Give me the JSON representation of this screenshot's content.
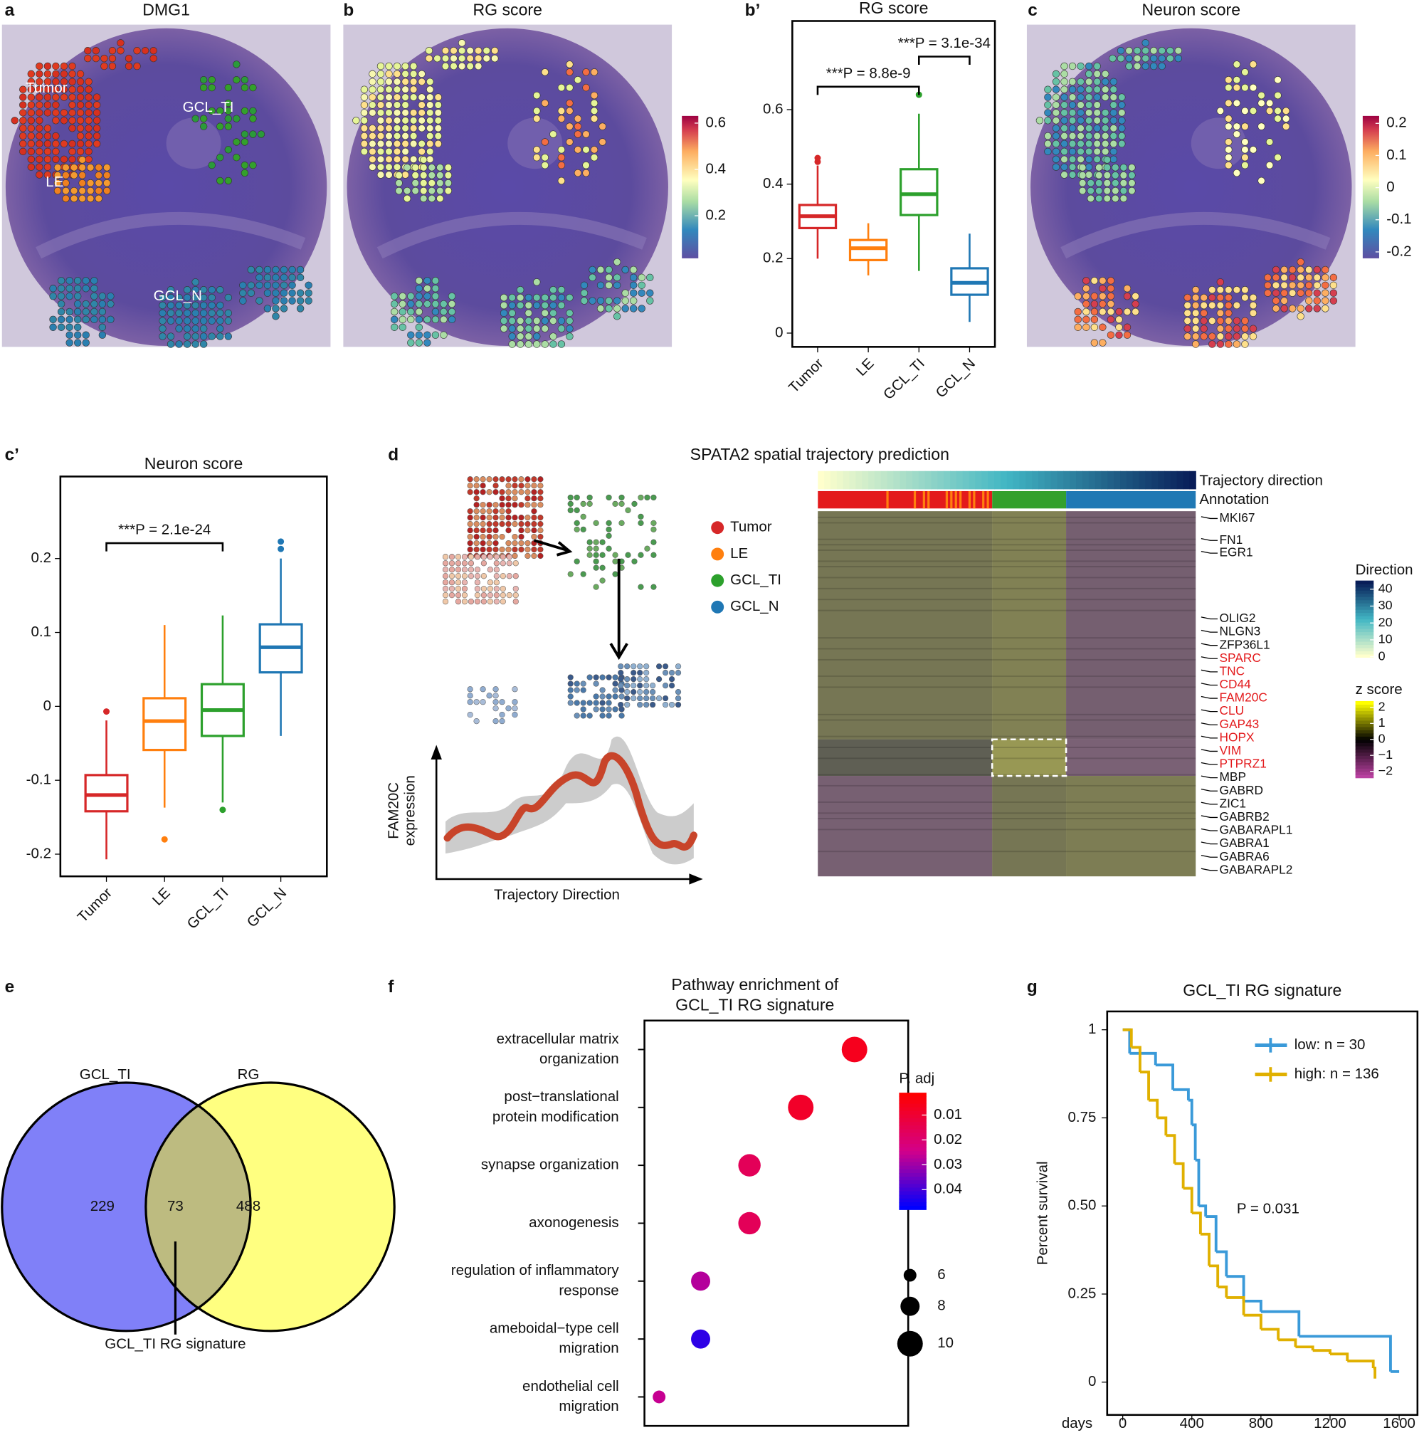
{
  "panel_labels": [
    "a",
    "b",
    "b’",
    "c",
    "c’",
    "d",
    "e",
    "f",
    "g"
  ],
  "spatial_maps": [
    {
      "title": "DMG1",
      "labels": [
        "Tumor",
        "LE",
        "GCL_TI",
        "GCL_N"
      ]
    },
    {
      "title": "RG score",
      "colorbar": {
        "lim": [
          0.016,
          0.631
        ],
        "ticks": [
          0.2,
          0.4,
          0.6
        ]
      }
    },
    {
      "title": "Neuron score",
      "colorbar": {
        "lim": [
          -0.22,
          0.223
        ],
        "ticks": [
          -0.2,
          -0.1,
          0,
          0.1,
          0.2
        ]
      }
    }
  ],
  "chart_data": [
    {
      "type": "box",
      "title": "RG score",
      "categories": [
        "Tumor",
        "LE",
        "GCL_TI",
        "GCL_N"
      ],
      "colors": [
        "#d62728",
        "#ff7f0e",
        "#2ca02c",
        "#1f77b4"
      ],
      "boxes": [
        {
          "min": 0.2,
          "q1": 0.282,
          "median": 0.314,
          "q3": 0.344,
          "max": 0.45,
          "outliers": [
            0.46,
            0.47
          ]
        },
        {
          "min": 0.155,
          "q1": 0.196,
          "median": 0.228,
          "q3": 0.25,
          "max": 0.295,
          "outliers": []
        },
        {
          "min": 0.167,
          "q1": 0.317,
          "median": 0.373,
          "q3": 0.44,
          "max": 0.589,
          "outliers": [
            0.64
          ]
        },
        {
          "min": 0.03,
          "q1": 0.103,
          "median": 0.135,
          "q3": 0.174,
          "max": 0.267,
          "outliers": []
        }
      ],
      "ylim": [
        -0.037,
        0.838
      ],
      "yticks": [
        0,
        0.2,
        0.4,
        0.6
      ],
      "annotations": [
        "***P = 8.8e-9",
        "***P = 3.1e-34"
      ]
    },
    {
      "type": "box",
      "title": "Neuron score",
      "categories": [
        "Tumor",
        "LE",
        "GCL_TI",
        "GCL_N"
      ],
      "colors": [
        "#d62728",
        "#ff7f0e",
        "#2ca02c",
        "#1f77b4"
      ],
      "boxes": [
        {
          "min": -0.207,
          "q1": -0.142,
          "median": -0.12,
          "q3": -0.093,
          "max": -0.019,
          "outliers": [
            -0.007
          ]
        },
        {
          "min": -0.137,
          "q1": -0.059,
          "median": -0.02,
          "q3": 0.011,
          "max": 0.11,
          "outliers": [
            -0.18
          ]
        },
        {
          "min": -0.13,
          "q1": -0.04,
          "median": -0.005,
          "q3": 0.03,
          "max": 0.123,
          "outliers": [
            -0.14
          ]
        },
        {
          "min": -0.04,
          "q1": 0.046,
          "median": 0.08,
          "q3": 0.111,
          "max": 0.2,
          "outliers": [
            0.213,
            0.223
          ]
        }
      ],
      "ylim": [
        -0.23,
        0.311
      ],
      "yticks": [
        -0.2,
        -0.1,
        0,
        0.1,
        0.2
      ],
      "annotations": [
        "***P = 2.1e-24"
      ]
    },
    {
      "type": "dot",
      "title": [
        "Pathway enrichment of",
        "GCL_TI RG signature"
      ],
      "categories": [
        [
          "extracellular matrix",
          "organization"
        ],
        [
          "post−translational",
          "protein modification"
        ],
        [
          "synapse organization"
        ],
        [
          "axonogenesis"
        ],
        [
          "regulation of inflammatory",
          "response"
        ],
        [
          "ameboidal−type cell",
          "migration"
        ],
        [
          "endothelial cell",
          "migration"
        ]
      ],
      "x": [
        0.14,
        0.118,
        0.097,
        0.097,
        0.077,
        0.077,
        0.06
      ],
      "sizes": [
        10,
        10,
        9,
        9,
        8,
        8,
        6
      ],
      "p_adj": [
        0.006,
        0.008,
        0.016,
        0.016,
        0.028,
        0.043,
        0.026
      ],
      "xlim": [
        0.054,
        0.162
      ],
      "color_legend": {
        "title": "P. adj",
        "lim": [
          0.001,
          0.048
        ],
        "ticks": [
          0.01,
          0.02,
          0.03,
          0.04
        ],
        "colors": [
          "#ff0000",
          "#d3008a",
          "#0000ff"
        ]
      },
      "size_legend": [
        6,
        8,
        10
      ]
    },
    {
      "type": "step",
      "title": "GCL_TI RG signature",
      "ylabel": "Percent survival",
      "xlabel": "days",
      "series": [
        {
          "name": "low: n = 30",
          "color": "#3a9ad9",
          "x": [
            0,
            40,
            190,
            290,
            380,
            400,
            420,
            440,
            480,
            540,
            600,
            700,
            800,
            1020,
            1550,
            1600
          ],
          "values": [
            1,
            0.933,
            0.9,
            0.83,
            0.8,
            0.73,
            0.63,
            0.5,
            0.47,
            0.37,
            0.3,
            0.23,
            0.2,
            0.13,
            0.03,
            0.03
          ]
        },
        {
          "name": "high: n = 136",
          "color": "#e0b000",
          "x": [
            0,
            50,
            100,
            150,
            200,
            250,
            300,
            350,
            400,
            450,
            500,
            550,
            600,
            700,
            800,
            900,
            1000,
            1100,
            1200,
            1300,
            1450,
            1460
          ],
          "values": [
            1,
            0.95,
            0.88,
            0.8,
            0.75,
            0.7,
            0.62,
            0.55,
            0.48,
            0.42,
            0.33,
            0.27,
            0.24,
            0.19,
            0.15,
            0.12,
            0.1,
            0.09,
            0.08,
            0.06,
            0.04,
            0.01
          ]
        }
      ],
      "xlim": [
        -90,
        1706
      ],
      "ylim": [
        -0.093,
        1.052
      ],
      "xticks": [
        0,
        400,
        800,
        1200,
        1600
      ],
      "yticks": [
        0,
        0.25,
        {
          "value": 0.5,
          "label": "0.50"
        },
        0.75,
        1
      ],
      "annotation": "P = 0.031"
    }
  ],
  "trajectory": {
    "title": "SPATA2 spatial trajectory prediction",
    "legend": [
      {
        "name": "Tumor",
        "color": "#d62728"
      },
      {
        "name": "LE",
        "color": "#ff7f0e"
      },
      {
        "name": "GCL_TI",
        "color": "#2ca02c"
      },
      {
        "name": "GCL_N",
        "color": "#1f77b4"
      }
    ],
    "ylabel": [
      "FAM20C",
      "expression"
    ],
    "xlabel": "Trajectory Direction",
    "heatmap_rows": [
      "Trajectory direction",
      "Annotation"
    ],
    "highlight_color": "#e31a1c",
    "genes": [
      {
        "name": "MKI67",
        "highlight": false
      },
      {
        "name": "FN1",
        "highlight": false
      },
      {
        "name": "EGR1",
        "highlight": false
      },
      {
        "name": "OLIG2",
        "highlight": false
      },
      {
        "name": "NLGN3",
        "highlight": false
      },
      {
        "name": "ZFP36L1",
        "highlight": false
      },
      {
        "name": "SPARC",
        "highlight": true
      },
      {
        "name": "TNC",
        "highlight": true
      },
      {
        "name": "CD44",
        "highlight": true
      },
      {
        "name": "FAM20C",
        "highlight": true
      },
      {
        "name": "CLU",
        "highlight": true
      },
      {
        "name": "GAP43",
        "highlight": true
      },
      {
        "name": "HOPX",
        "highlight": true
      },
      {
        "name": "VIM",
        "highlight": true
      },
      {
        "name": "PTPRZ1",
        "highlight": true
      },
      {
        "name": "MBP",
        "highlight": false
      },
      {
        "name": "GABRD",
        "highlight": false
      },
      {
        "name": "ZIC1",
        "highlight": false
      },
      {
        "name": "GABRB2",
        "highlight": false
      },
      {
        "name": "GABARAPL1",
        "highlight": false
      },
      {
        "name": "GABRA1",
        "highlight": false
      },
      {
        "name": "GABRA6",
        "highlight": false
      },
      {
        "name": "GABARAPL2",
        "highlight": false
      }
    ],
    "direction_scale": {
      "title": "Direction",
      "lim": [
        -0.3,
        45.1
      ],
      "ticks": [
        0,
        10,
        20,
        30,
        40
      ],
      "colors": [
        "#ffffcc",
        "#41b6c4",
        "#081d58"
      ]
    },
    "z_scale": {
      "title": "z score",
      "lim": [
        -2.4,
        2.4
      ],
      "ticks": [
        2,
        1,
        0,
        {
          "value": -1,
          "label": "−1"
        },
        {
          "value": -2,
          "label": "−2"
        }
      ],
      "colors": [
        "#b8409f",
        "#000000",
        "#ffff00"
      ]
    }
  },
  "venn": {
    "sets": [
      "GCL_TI",
      "RG"
    ],
    "counts": [
      229,
      73,
      488
    ],
    "label": "GCL_TI RG signature"
  }
}
